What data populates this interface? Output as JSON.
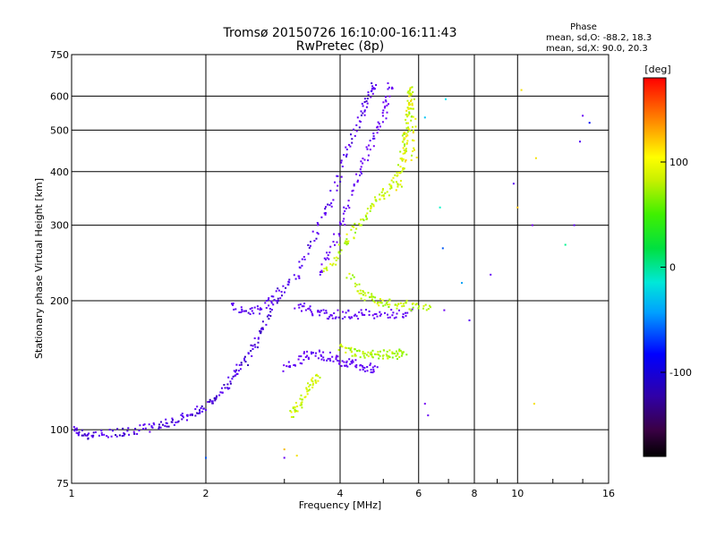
{
  "chart_data": {
    "type": "scatter",
    "title": "Tromsø 20150726 16:10:00-16:11:43",
    "subtitle": "RwPretec (8p)",
    "xlabel": "Frequency [MHz]",
    "ylabel": "Stationary phase Virtual Height [km]",
    "x_scale": "log",
    "y_scale": "log",
    "xlim": [
      1,
      16
    ],
    "ylim": [
      75,
      750
    ],
    "x_ticks": [
      "1",
      "2",
      "4",
      "6",
      "8",
      "10",
      "16"
    ],
    "x_tick_values": [
      1,
      2,
      4,
      6,
      8,
      10,
      16
    ],
    "y_ticks": [
      "75",
      "100",
      "200",
      "300",
      "400",
      "500",
      "600",
      "750"
    ],
    "y_tick_values": [
      75,
      100,
      200,
      300,
      400,
      500,
      600,
      750
    ],
    "grid": true,
    "phase_stats": {
      "heading": "Phase",
      "o_line": "mean, sd,O: -88.2, 18.3",
      "x_line": "mean, sd,X:  90.0, 20.3"
    },
    "colorbar": {
      "label": "[deg]",
      "range": [
        -180,
        180
      ],
      "ticks": [
        "100",
        "0",
        "-100"
      ],
      "tick_values": [
        100,
        0,
        -100
      ]
    },
    "traces": [
      {
        "name": "",
        "phase": -118,
        "points": [
          [
            1.02,
            100
          ],
          [
            1.05,
            98
          ],
          [
            1.1,
            97
          ],
          [
            1.2,
            98
          ],
          [
            1.3,
            99
          ],
          [
            1.4,
            100
          ],
          [
            1.5,
            101
          ],
          [
            1.6,
            103
          ],
          [
            1.7,
            105
          ],
          [
            1.8,
            107
          ],
          [
            1.9,
            110
          ],
          [
            2.0,
            113
          ],
          [
            2.1,
            118
          ],
          [
            2.2,
            125
          ],
          [
            2.3,
            132
          ],
          [
            2.4,
            140
          ],
          [
            2.5,
            150
          ],
          [
            2.6,
            162
          ],
          [
            2.7,
            175
          ],
          [
            2.8,
            190
          ],
          [
            2.9,
            210
          ]
        ]
      },
      {
        "name": "",
        "phase": -112,
        "points": [
          [
            2.3,
            195
          ],
          [
            2.45,
            190
          ],
          [
            2.6,
            190
          ],
          [
            2.8,
            200
          ],
          [
            3.0,
            215
          ],
          [
            3.2,
            230
          ],
          [
            3.4,
            260
          ],
          [
            3.6,
            300
          ],
          [
            3.8,
            340
          ],
          [
            4.0,
            400
          ],
          [
            4.2,
            460
          ],
          [
            4.4,
            520
          ],
          [
            4.55,
            570
          ],
          [
            4.7,
            610
          ],
          [
            4.8,
            640
          ]
        ]
      },
      {
        "name": "",
        "phase": -105,
        "points": [
          [
            3.2,
            195
          ],
          [
            3.4,
            190
          ],
          [
            3.6,
            187
          ],
          [
            3.8,
            186
          ],
          [
            4.0,
            186
          ],
          [
            4.3,
            186
          ],
          [
            4.6,
            186
          ],
          [
            5.0,
            186
          ],
          [
            5.4,
            186
          ],
          [
            5.8,
            187
          ]
        ]
      },
      {
        "name": "",
        "phase": -100,
        "points": [
          [
            3.6,
            230
          ],
          [
            3.8,
            260
          ],
          [
            4.0,
            300
          ],
          [
            4.2,
            340
          ],
          [
            4.4,
            390
          ],
          [
            4.6,
            440
          ],
          [
            4.8,
            490
          ],
          [
            5.0,
            540
          ],
          [
            5.1,
            590
          ],
          [
            5.2,
            640
          ]
        ]
      },
      {
        "name": "",
        "phase": -105,
        "points": [
          [
            3.0,
            140
          ],
          [
            3.2,
            145
          ],
          [
            3.4,
            150
          ],
          [
            3.6,
            150
          ],
          [
            3.8,
            148
          ],
          [
            4.0,
            145
          ],
          [
            4.2,
            143
          ],
          [
            4.4,
            142
          ],
          [
            4.6,
            140
          ],
          [
            4.8,
            139
          ]
        ]
      },
      {
        "name": "",
        "phase": 100,
        "points": [
          [
            3.7,
            230
          ],
          [
            3.9,
            250
          ],
          [
            4.1,
            270
          ],
          [
            4.3,
            290
          ],
          [
            4.5,
            310
          ],
          [
            4.7,
            330
          ],
          [
            4.9,
            345
          ],
          [
            5.1,
            360
          ],
          [
            5.3,
            380
          ],
          [
            5.5,
            420
          ],
          [
            5.6,
            470
          ],
          [
            5.7,
            520
          ],
          [
            5.8,
            580
          ],
          [
            5.75,
            630
          ]
        ]
      },
      {
        "name": "",
        "phase": 98,
        "points": [
          [
            4.2,
            230
          ],
          [
            4.4,
            210
          ],
          [
            4.6,
            205
          ],
          [
            4.8,
            200
          ],
          [
            5.0,
            198
          ],
          [
            5.3,
            197
          ],
          [
            5.6,
            196
          ],
          [
            6.0,
            193
          ],
          [
            6.4,
            190
          ]
        ]
      },
      {
        "name": "",
        "phase": 103,
        "points": [
          [
            3.1,
            108
          ],
          [
            3.2,
            113
          ],
          [
            3.3,
            118
          ],
          [
            3.4,
            125
          ],
          [
            3.5,
            130
          ],
          [
            3.6,
            133
          ]
        ]
      },
      {
        "name": "",
        "phase": 95,
        "points": [
          [
            4.0,
            155
          ],
          [
            4.2,
            152
          ],
          [
            4.4,
            151
          ],
          [
            4.6,
            150
          ],
          [
            4.8,
            150
          ],
          [
            5.0,
            150
          ],
          [
            5.2,
            150
          ],
          [
            5.4,
            150
          ],
          [
            5.6,
            151
          ]
        ]
      },
      {
        "name": "",
        "phase": 110,
        "points": [
          [
            5.4,
            360
          ],
          [
            5.5,
            400
          ],
          [
            5.6,
            450
          ],
          [
            5.65,
            500
          ],
          [
            5.7,
            560
          ],
          [
            5.7,
            620
          ],
          [
            5.9,
            490
          ],
          [
            5.85,
            420
          ]
        ]
      }
    ],
    "scatter_points": [
      {
        "x": 4.85,
        "y": 140,
        "phase": -110
      },
      {
        "x": 6.2,
        "y": 535,
        "phase": -30
      },
      {
        "x": 6.9,
        "y": 590,
        "phase": -20
      },
      {
        "x": 6.7,
        "y": 330,
        "phase": -5
      },
      {
        "x": 6.8,
        "y": 265,
        "phase": -60
      },
      {
        "x": 6.85,
        "y": 190,
        "phase": -95
      },
      {
        "x": 7.5,
        "y": 220,
        "phase": -40
      },
      {
        "x": 7.8,
        "y": 180,
        "phase": -120
      },
      {
        "x": 8.7,
        "y": 230,
        "phase": -100
      },
      {
        "x": 9.8,
        "y": 375,
        "phase": -110
      },
      {
        "x": 10.0,
        "y": 330,
        "phase": 130
      },
      {
        "x": 10.2,
        "y": 620,
        "phase": 120
      },
      {
        "x": 10.8,
        "y": 300,
        "phase": -90
      },
      {
        "x": 10.9,
        "y": 115,
        "phase": 120
      },
      {
        "x": 12.8,
        "y": 270,
        "phase": 10
      },
      {
        "x": 13.4,
        "y": 300,
        "phase": -110
      },
      {
        "x": 13.8,
        "y": 470,
        "phase": -120
      },
      {
        "x": 14.0,
        "y": 540,
        "phase": -100
      },
      {
        "x": 14.5,
        "y": 520,
        "phase": -80
      },
      {
        "x": 6.2,
        "y": 115,
        "phase": -90
      },
      {
        "x": 6.3,
        "y": 108,
        "phase": -100
      },
      {
        "x": 3.0,
        "y": 90,
        "phase": 130
      },
      {
        "x": 3.2,
        "y": 87,
        "phase": 120
      },
      {
        "x": 3.0,
        "y": 86,
        "phase": -100
      },
      {
        "x": 2.0,
        "y": 86,
        "phase": -60
      },
      {
        "x": 11.0,
        "y": 430,
        "phase": 120
      }
    ]
  }
}
